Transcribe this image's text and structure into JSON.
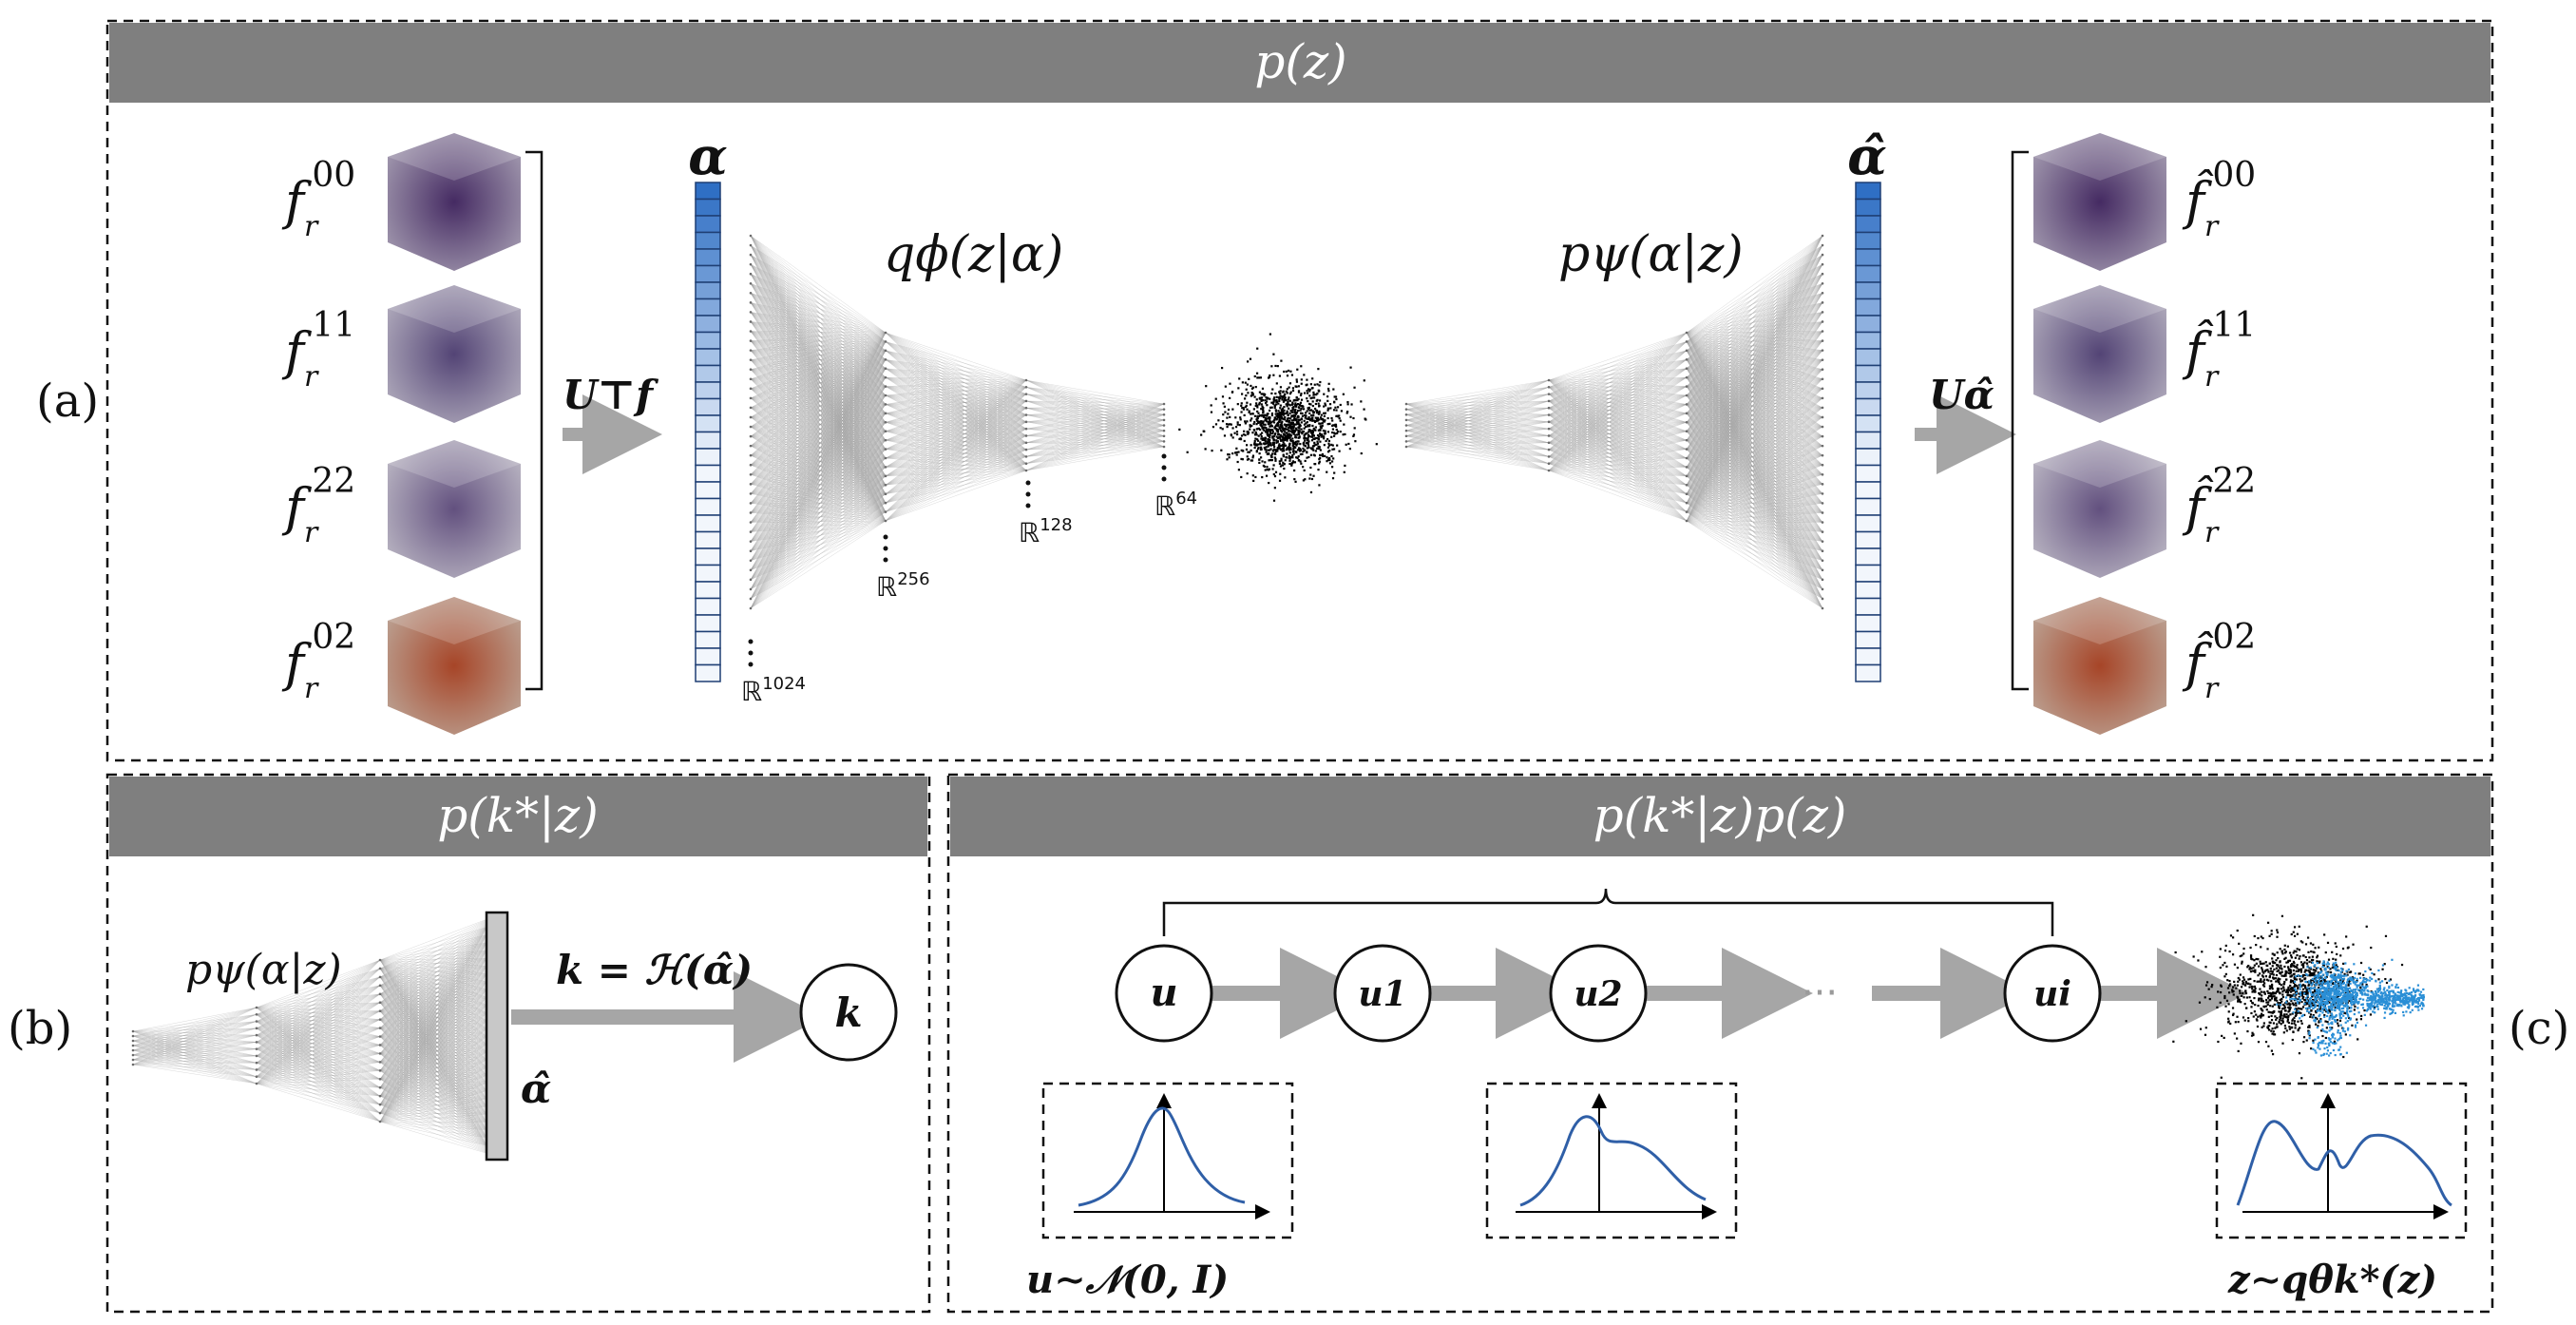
{
  "panels": {
    "a": {
      "side_label": "(a)",
      "title": "p(z)",
      "inputs": [
        {
          "name": "f",
          "sub": "r",
          "sup": "00",
          "cube_color": "#4a2a66"
        },
        {
          "name": "f",
          "sub": "r",
          "sup": "11",
          "cube_color": "#5a4a7a"
        },
        {
          "name": "f",
          "sub": "r",
          "sup": "22",
          "cube_color": "#6a5a80"
        },
        {
          "name": "f",
          "sub": "r",
          "sup": "02",
          "cube_color": "#a84a2a"
        }
      ],
      "outputs": [
        {
          "name": "f̂",
          "sub": "r",
          "sup": "00"
        },
        {
          "name": "f̂",
          "sub": "r",
          "sup": "11"
        },
        {
          "name": "f̂",
          "sub": "r",
          "sup": "22"
        },
        {
          "name": "f̂",
          "sub": "r",
          "sup": "02"
        }
      ],
      "transform_in": "U⊤f",
      "transform_out": "Uα̂",
      "alpha_label": "α",
      "alpha_hat_label": "α̂",
      "encoder_label": "qϕ(z|α)",
      "decoder_label": "pψ(α|z)",
      "dims": [
        {
          "base": "ℝ",
          "exp": "1024"
        },
        {
          "base": "ℝ",
          "exp": "256"
        },
        {
          "base": "ℝ",
          "exp": "128"
        },
        {
          "base": "ℝ",
          "exp": "64"
        }
      ]
    },
    "b": {
      "side_label": "(b)",
      "title": "p(k*|z)",
      "decoder_label": "pψ(α|z)",
      "alpha_hat_label": "α̂",
      "mapping_label": "k = ℋ(α̂)",
      "node_label": "k"
    },
    "c": {
      "side_label": "(c)",
      "title": "p(k*|z)p(z)",
      "nodes": [
        "u",
        "u1",
        "u2",
        "ui"
      ],
      "ellipsis": "···",
      "base_dist_label": "u∼𝒩(0, I)",
      "target_dist_label": "z∼qθk*(z)"
    }
  },
  "colors": {
    "header_bg": "#7f7f7f",
    "alpha_bar_top": "#3a6fc4",
    "alpha_bar_bottom": "#eef3fb",
    "curve": "#2f5fa7",
    "scatter_black": "#000000",
    "scatter_blue": "#2b8fd6",
    "arrow": "#a6a6a6"
  }
}
